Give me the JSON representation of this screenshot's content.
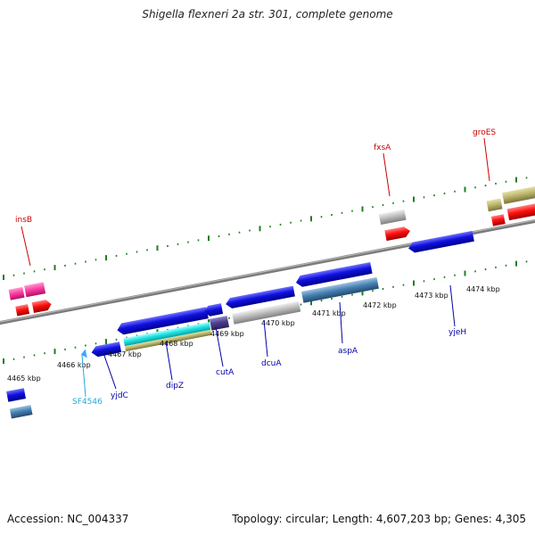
{
  "title": "Shigella flexneri 2a str. 301, complete genome",
  "footer": {
    "accession": "Accession: NC_004337",
    "summary": "Topology: circular; Length: 4,607,203 bp; Genes: 4,305"
  },
  "colors": {
    "backbone": "#8c8c8c",
    "tick": "#1f7f1f",
    "gene_label_fwd": "#cc0000",
    "gene_label_rev": "#0000aa",
    "gene_label_misc": "#22a9d8",
    "cds": "#1010e0",
    "rna": "#ff1a1a",
    "misc_pink": "#ff3fa2",
    "grey": "#bdbdbd",
    "olive": "#bdb76b",
    "cyan": "#1fe5e5",
    "steel": "#4682b4",
    "purple": "#4b3f8f"
  },
  "scale_labels": [
    "4465 kbp",
    "4466 kbp",
    "4467 kbp",
    "4468 kbp",
    "4469 kbp",
    "4470 kbp",
    "4471 kbp",
    "4472 kbp",
    "4473 kbp",
    "4474 kbp"
  ],
  "gene_labels": [
    {
      "name": "insB",
      "strand": "forward",
      "color": "#cc0000"
    },
    {
      "name": "fxsA",
      "strand": "forward",
      "color": "#cc0000"
    },
    {
      "name": "groES",
      "strand": "forward",
      "color": "#cc0000"
    },
    {
      "name": "SF4546",
      "strand": "reverse",
      "color": "#22a9d8"
    },
    {
      "name": "yjdC",
      "strand": "reverse",
      "color": "#0000aa"
    },
    {
      "name": "dipZ",
      "strand": "reverse",
      "color": "#0000aa"
    },
    {
      "name": "cutA",
      "strand": "reverse",
      "color": "#0000aa"
    },
    {
      "name": "dcuA",
      "strand": "reverse",
      "color": "#0000aa"
    },
    {
      "name": "aspA",
      "strand": "reverse",
      "color": "#0000aa"
    },
    {
      "name": "yjeH",
      "strand": "reverse",
      "color": "#0000aa"
    }
  ]
}
